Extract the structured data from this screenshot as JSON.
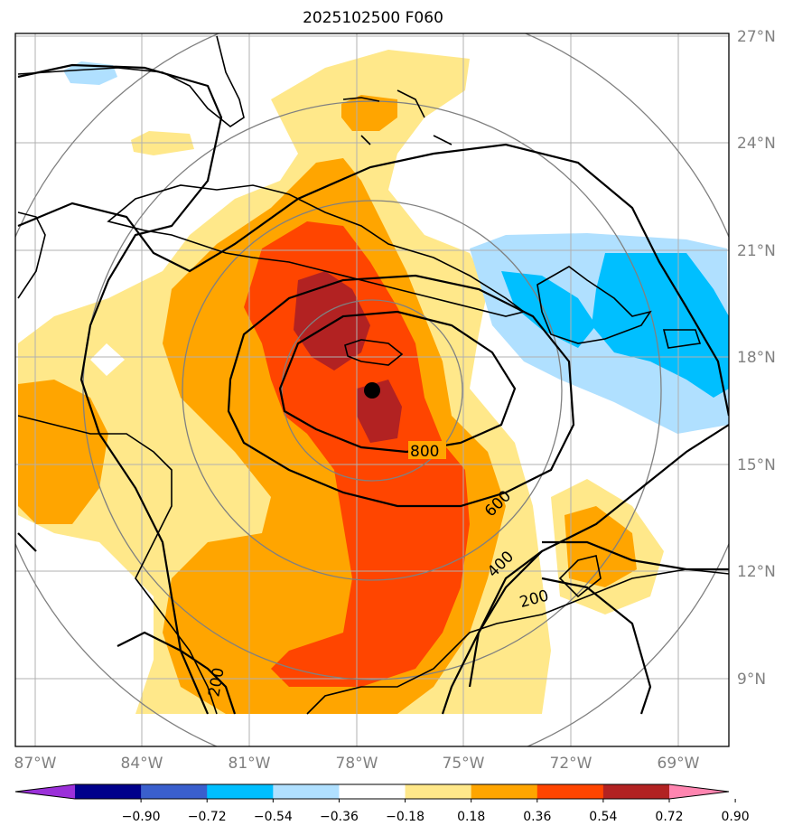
{
  "title": "2025102500 F060",
  "lon_labels": [
    "87°W",
    "84°W",
    "81°W",
    "78°W",
    "75°W",
    "72°W",
    "69°W"
  ],
  "lat_labels": [
    "27°N",
    "24°N",
    "21°N",
    "18°N",
    "15°N",
    "12°N",
    "9°N"
  ],
  "contour_labels": [
    "800",
    "600",
    "400",
    "200",
    "200"
  ],
  "colorbar": {
    "labels": [
      "−0.90",
      "−0.72",
      "−0.54",
      "−0.36",
      "−0.18",
      "0.18",
      "0.36",
      "0.54",
      "0.72",
      "0.90"
    ],
    "colors": [
      "#9b30d9",
      "#00008b",
      "#3a5fcd",
      "#00bfff",
      "#b0e0ff",
      "#ffffff",
      "#ffe88a",
      "#ffa500",
      "#ff4500",
      "#b22222",
      "#ff85b0"
    ]
  },
  "storm_center": {
    "lon": -77.8,
    "lat": 17.1
  },
  "colors": {
    "light_yellow": "#ffe88a",
    "orange": "#ffa500",
    "red_orange": "#ff4500",
    "dark_red": "#b22222",
    "light_blue": "#b0e0ff",
    "sky_blue": "#00bfff",
    "gridline": "#b0b0b0",
    "range_ring": "#808080"
  }
}
